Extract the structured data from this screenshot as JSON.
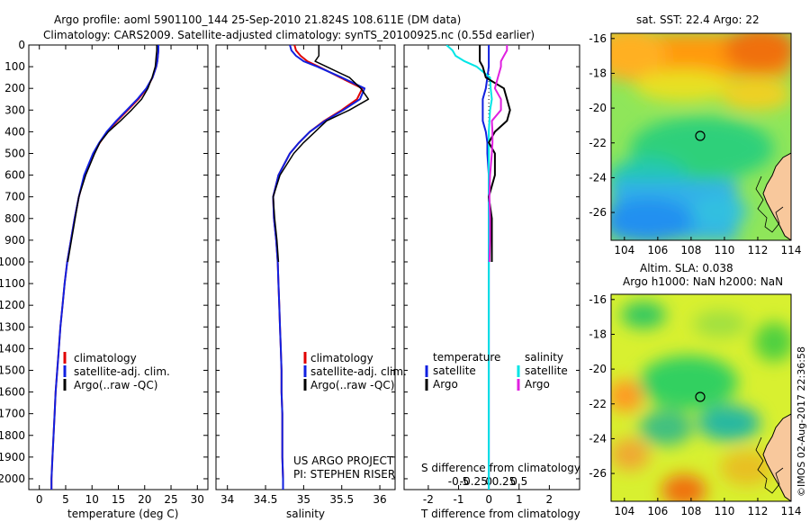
{
  "header": {
    "line1": "Argo profile: aoml 5901100_144 25-Sep-2010 21.824S 108.611E (DM data)",
    "line2": "Climatology: CARS2009. Satellite-adjusted climatology: synTS_20100925.nc (0.55d earlier)"
  },
  "colors": {
    "climatology": "#e00000",
    "satellite": "#1020e0",
    "argo": "#000000",
    "sal_satellite": "#00e5e5",
    "sal_argo": "#e020e0"
  },
  "legend_labels": {
    "climatology": "climatology",
    "satellite_adj": "satellite-adj. clim.",
    "argo": "Argo(..raw -QC)",
    "temperature": "temperature",
    "salinity": "salinity",
    "satellite": "satellite",
    "argo_short": "Argo"
  },
  "project": {
    "line1": "US ARGO PROJECT",
    "line2": "PI: STEPHEN RISER"
  },
  "map_sst": {
    "title": "sat. SST: 22.4  Argo: 22",
    "x_ticks": [
      "104",
      "106",
      "108",
      "110",
      "112",
      "114"
    ],
    "y_ticks": [
      "-16",
      "-18",
      "-20",
      "-22",
      "-24",
      "-26"
    ],
    "float_lon": 108.611,
    "float_lat": -21.824
  },
  "map_sla": {
    "title1": "Altim. SLA: 0.038",
    "title2": "Argo h1000: NaN h2000: NaN",
    "x_ticks": [
      "104",
      "106",
      "108",
      "110",
      "112",
      "114"
    ],
    "y_ticks": [
      "-16",
      "-18",
      "-20",
      "-22",
      "-24",
      "-26"
    ],
    "float_lon": 108.611,
    "float_lat": -21.824
  },
  "credit": "©IMOS 02-Aug-2017 22:36:58",
  "chart_data": [
    {
      "type": "line",
      "panel": "temperature",
      "xlabel": "temperature (deg C)",
      "xlim": [
        -2,
        32
      ],
      "x_ticks": [
        "0",
        "5",
        "10",
        "15",
        "20",
        "25",
        "30"
      ],
      "ylim": [
        0,
        2050
      ],
      "y_ticks": [
        "0",
        "100",
        "200",
        "300",
        "400",
        "500",
        "600",
        "700",
        "800",
        "900",
        "1000",
        "1100",
        "1200",
        "1300",
        "1400",
        "1500",
        "1600",
        "1700",
        "1800",
        "1900",
        "2000"
      ],
      "depth": [
        0,
        25,
        50,
        75,
        100,
        150,
        200,
        250,
        300,
        350,
        400,
        450,
        500,
        600,
        700,
        800,
        900,
        1000,
        1100,
        1200,
        1300,
        1400,
        1500,
        1600,
        1700,
        1800,
        1900,
        2000,
        2050
      ],
      "series": [
        {
          "name": "climatology",
          "values": [
            22.6,
            22.6,
            22.5,
            22.4,
            22.2,
            21.5,
            20.4,
            18.8,
            16.8,
            14.8,
            12.9,
            11.5,
            10.3,
            8.6,
            7.5,
            6.7,
            6.0,
            5.3,
            4.8,
            4.4,
            4.0,
            3.7,
            3.4,
            3.1,
            2.9,
            2.7,
            2.5,
            2.3,
            2.3
          ]
        },
        {
          "name": "satellite-adj. clim.",
          "values": [
            22.6,
            22.6,
            22.5,
            22.4,
            22.2,
            21.5,
            20.3,
            18.6,
            16.6,
            14.6,
            12.8,
            11.4,
            10.2,
            8.5,
            7.5,
            6.7,
            6.0,
            5.3,
            4.8,
            4.4,
            4.0,
            3.7,
            3.4,
            3.1,
            2.9,
            2.7,
            2.5,
            2.3,
            2.3
          ]
        },
        {
          "name": "Argo(..raw -QC)",
          "values": [
            22.3,
            22.3,
            22.2,
            22.1,
            22.0,
            21.4,
            20.6,
            19.4,
            17.5,
            15.4,
            13.1,
            11.5,
            10.5,
            8.8,
            7.5,
            6.8,
            6.1,
            5.4
          ]
        }
      ]
    },
    {
      "type": "line",
      "panel": "salinity",
      "xlabel": "salinity",
      "xlim": [
        33.85,
        36.2
      ],
      "x_ticks": [
        "34",
        "34.5",
        "35",
        "35.5",
        "36"
      ],
      "ylim": [
        0,
        2050
      ],
      "depth": [
        0,
        25,
        50,
        75,
        100,
        150,
        200,
        250,
        300,
        350,
        400,
        450,
        500,
        600,
        700,
        800,
        900,
        1000,
        1100,
        1200,
        1300,
        1400,
        1500,
        1600,
        1700,
        1800,
        1900,
        2000,
        2050
      ],
      "series": [
        {
          "name": "climatology",
          "values": [
            34.88,
            34.9,
            34.96,
            35.05,
            35.2,
            35.48,
            35.77,
            35.7,
            35.5,
            35.27,
            35.08,
            34.94,
            34.82,
            34.67,
            34.6,
            34.61,
            34.64,
            34.66,
            34.67,
            34.68,
            34.69,
            34.7,
            34.71,
            34.71,
            34.72,
            34.72,
            34.72,
            34.73,
            34.73
          ]
        },
        {
          "name": "satellite-adj. clim.",
          "values": [
            34.82,
            34.84,
            34.9,
            35.0,
            35.18,
            35.5,
            35.8,
            35.74,
            35.52,
            35.28,
            35.08,
            34.94,
            34.82,
            34.67,
            34.6,
            34.61,
            34.64,
            34.66,
            34.67,
            34.68,
            34.69,
            34.7,
            34.71,
            34.71,
            34.72,
            34.72,
            34.72,
            34.73,
            34.73
          ]
        },
        {
          "name": "Argo(..raw -QC)",
          "values": [
            35.2,
            35.2,
            35.2,
            35.15,
            35.3,
            35.6,
            35.75,
            35.85,
            35.6,
            35.3,
            35.15,
            35.0,
            34.87,
            34.69,
            34.6,
            34.62,
            34.65,
            34.67
          ]
        }
      ]
    },
    {
      "type": "line",
      "panel": "difference",
      "xlabel": "T difference from climatology",
      "x_ticks": [
        "-2",
        "-1",
        "0",
        "1",
        "2"
      ],
      "xlim": [
        -2.8,
        3.0
      ],
      "xlabel_top": "S difference from climatology",
      "x_ticks_top": [
        "-0.5",
        "-0.25",
        "0",
        "0.25",
        "0.5"
      ],
      "ylim": [
        0,
        2050
      ],
      "depth": [
        0,
        25,
        50,
        75,
        100,
        150,
        200,
        250,
        300,
        350,
        400,
        450,
        500,
        600,
        700,
        800,
        900,
        1000,
        1100,
        1200,
        1300,
        1400,
        1500,
        1600,
        1700,
        1800,
        1900,
        2000,
        2050
      ],
      "series": [
        {
          "name": "temperature satellite",
          "values": [
            0,
            0,
            0,
            0,
            0,
            -0.05,
            -0.1,
            -0.2,
            -0.2,
            -0.2,
            -0.1,
            -0.05,
            -0.05,
            0,
            0,
            0,
            0,
            0,
            0,
            0,
            0,
            0,
            0,
            0,
            0,
            0,
            0,
            0,
            0
          ]
        },
        {
          "name": "salinity satellite",
          "values": [
            -0.7,
            -0.6,
            -0.55,
            -0.4,
            -0.2,
            0.02,
            0.03,
            0.05,
            0.02,
            0.01,
            0,
            0,
            0,
            0,
            0,
            0,
            0,
            0,
            0,
            0,
            0,
            0,
            0,
            0,
            0,
            0,
            0,
            0,
            0
          ]
        },
        {
          "name": "temperature Argo",
          "values": [
            -0.3,
            -0.3,
            -0.3,
            -0.3,
            -0.2,
            -0.1,
            0.5,
            0.6,
            0.7,
            0.6,
            0.2,
            0,
            0.2,
            0.2,
            0,
            0.1,
            0.1,
            0.1
          ]
        },
        {
          "name": "salinity Argo",
          "values": [
            0.3,
            0.3,
            0.25,
            0.2,
            0.2,
            0.15,
            0.1,
            0.2,
            0.2,
            0.05,
            0.06,
            0.06,
            0.05,
            0.02,
            0.01,
            0.02,
            0.02,
            0.01
          ]
        }
      ]
    }
  ]
}
